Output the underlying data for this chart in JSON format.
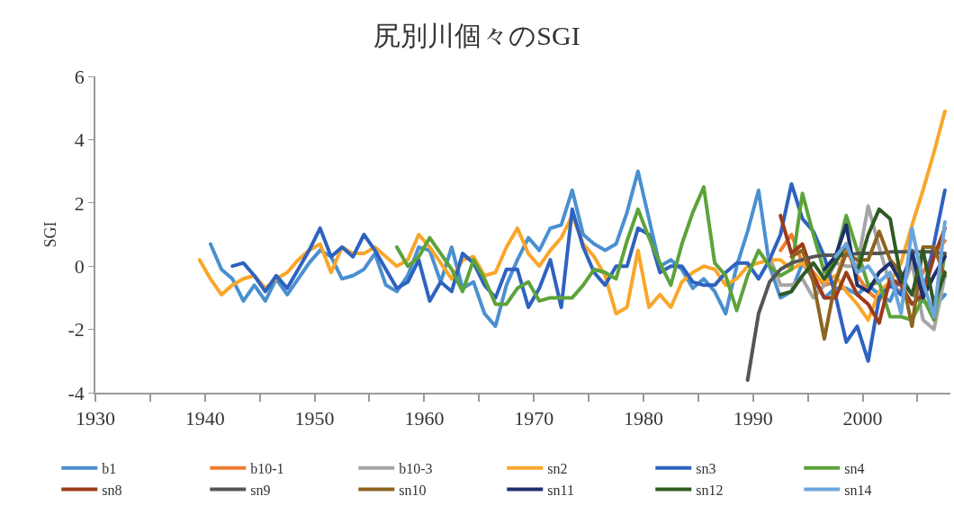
{
  "chart_data": {
    "type": "line",
    "title": "尻別川個々のSGI",
    "ylabel": "SGI",
    "xlim": [
      1930,
      2008
    ],
    "xticks": [
      1930,
      {
        "value": 1935,
        "label": null
      },
      1940,
      {
        "value": 1945,
        "label": null
      },
      1950,
      {
        "value": 1955,
        "label": null
      },
      1960,
      {
        "value": 1965,
        "label": null
      },
      1970,
      {
        "value": 1975,
        "label": null
      },
      1980,
      {
        "value": 1985,
        "label": null
      },
      1990,
      {
        "value": 1995,
        "label": null
      },
      2000,
      {
        "value": 2005,
        "label": null
      }
    ],
    "ylim": [
      -4,
      6
    ],
    "yticks": [
      -4,
      -2,
      0,
      2,
      4,
      6
    ],
    "legend": "bottom",
    "marker": "none",
    "line_style": "solid",
    "series": [
      {
        "name": "b1",
        "color": "#4a90d0",
        "x": [
          1940.5,
          1941.5,
          1942.5,
          1943.5,
          1944.5,
          1945.5,
          1946.5,
          1947.5,
          1948.5,
          1949.5,
          1950.5,
          1951.5,
          1952.5,
          1953.5,
          1954.5,
          1955.5,
          1956.5,
          1957.5,
          1958.5,
          1959.5,
          1960.5,
          1961.5,
          1962.5,
          1963.5,
          1964.5,
          1965.5,
          1966.5,
          1967.5,
          1968.5,
          1969.5,
          1970.5,
          1971.5,
          1972.5,
          1973.5,
          1974.5,
          1975.5,
          1976.5,
          1977.5,
          1978.5,
          1979.5,
          1980.5,
          1981.5,
          1982.5,
          1983.5,
          1984.5,
          1985.5,
          1986.5,
          1987.5,
          1988.5,
          1989.5,
          1990.5,
          1991.5,
          1992.5,
          1993.5,
          1994.5,
          1995.5,
          1996.5,
          1997.5,
          1998.5,
          1999.5,
          2000.5,
          2001.5,
          2002.5,
          2003.5,
          2004.5,
          2005.5,
          2006.5,
          2007.5
        ],
        "values": [
          0.7,
          -0.1,
          -0.4,
          -1.1,
          -0.6,
          -1.1,
          -0.4,
          -0.9,
          -0.4,
          0.1,
          0.5,
          0.3,
          -0.4,
          -0.3,
          -0.1,
          0.4,
          -0.6,
          -0.8,
          -0.3,
          0.6,
          0.5,
          -0.5,
          0.6,
          -0.7,
          -0.5,
          -1.5,
          -1.9,
          -0.6,
          0.2,
          0.9,
          0.5,
          1.2,
          1.3,
          2.4,
          1.0,
          0.7,
          0.5,
          0.7,
          1.7,
          3.0,
          1.5,
          0.0,
          0.2,
          -0.1,
          -0.7,
          -0.4,
          -0.8,
          -1.5,
          0.0,
          1.1,
          2.4,
          0.0,
          -1.0,
          -0.8,
          0.1,
          -0.4,
          -1.0,
          -0.7,
          -0.7,
          -0.9,
          -0.6,
          -0.9,
          -1.1,
          -0.3,
          -0.9,
          -1.1,
          -1.3,
          -0.9
        ]
      },
      {
        "name": "b10-1",
        "color": "#ed7d31",
        "x": [
          1992.5,
          1993.5,
          1994.5,
          1995.5,
          1996.5,
          1997.5,
          1998.5,
          1999.5,
          2000.5,
          2001.5,
          2002.5,
          2003.5,
          2004.5,
          2005.5,
          2006.5,
          2007.5
        ],
        "values": [
          0.5,
          1.0,
          0.1,
          -0.2,
          -0.6,
          -0.5,
          0.6,
          -0.3,
          -0.8,
          -1.1,
          -0.6,
          -0.4,
          -0.9,
          -0.2,
          0.4,
          0.8
        ]
      },
      {
        "name": "b10-3",
        "color": "#a5a5a5",
        "x": [
          1991.5,
          1992.5,
          1993.5,
          1994.5,
          1995.5,
          1996.5,
          1997.5,
          1998.5,
          1999.5,
          2000.5,
          2001.5,
          2002.5,
          2003.5,
          2004.5,
          2005.5,
          2006.5,
          2007.5
        ],
        "values": [
          0.3,
          -0.6,
          -0.6,
          -0.4,
          -1.0,
          -0.6,
          0.1,
          0.0,
          0.0,
          1.9,
          0.6,
          -0.6,
          -0.8,
          0.1,
          -1.7,
          -2.0,
          -0.3
        ]
      },
      {
        "name": "sn2",
        "color": "#f9a62b",
        "x": [
          1939.5,
          1940.5,
          1941.5,
          1942.5,
          1943.5,
          1944.5,
          1945.5,
          1946.5,
          1947.5,
          1948.5,
          1949.5,
          1950.5,
          1951.5,
          1952.5,
          1953.5,
          1954.5,
          1955.5,
          1956.5,
          1957.5,
          1958.5,
          1959.5,
          1960.5,
          1961.5,
          1962.5,
          1963.5,
          1964.5,
          1965.5,
          1966.5,
          1967.5,
          1968.5,
          1969.5,
          1970.5,
          1971.5,
          1972.5,
          1973.5,
          1974.5,
          1975.5,
          1976.5,
          1977.5,
          1978.5,
          1979.5,
          1980.5,
          1981.5,
          1982.5,
          1983.5,
          1984.5,
          1985.5,
          1986.5,
          1987.5,
          1988.5,
          1989.5,
          1990.5,
          1991.5,
          1992.5,
          1993.5,
          1994.5,
          1995.5,
          1996.5,
          1997.5,
          1998.5,
          1999.5,
          2000.5,
          2001.5,
          2002.5,
          2003.5,
          2004.5,
          2005.5,
          2006.5,
          2007.5
        ],
        "values": [
          0.2,
          -0.4,
          -0.9,
          -0.6,
          -0.4,
          -0.3,
          -0.7,
          -0.4,
          -0.2,
          0.2,
          0.5,
          0.7,
          -0.2,
          0.6,
          0.4,
          0.4,
          0.6,
          0.3,
          0.0,
          0.2,
          1.0,
          0.6,
          0.1,
          -0.4,
          0.2,
          0.3,
          -0.3,
          -0.2,
          0.6,
          1.2,
          0.4,
          0.0,
          0.5,
          0.9,
          1.6,
          0.7,
          0.3,
          -0.3,
          -1.5,
          -1.3,
          0.5,
          -1.3,
          -0.9,
          -1.3,
          -0.5,
          -0.2,
          0.0,
          -0.1,
          -0.6,
          -0.4,
          0.0,
          0.1,
          0.2,
          0.2,
          -0.1,
          0.1,
          -0.3,
          -0.5,
          -0.3,
          -0.8,
          -1.2,
          -1.7,
          -0.8,
          -0.5,
          0.1,
          1.3,
          2.4,
          3.6,
          4.9
        ]
      },
      {
        "name": "sn3",
        "color": "#2e62c0",
        "x": [
          1942.5,
          1943.5,
          1944.5,
          1945.5,
          1946.5,
          1947.5,
          1948.5,
          1949.5,
          1950.5,
          1951.5,
          1952.5,
          1953.5,
          1954.5,
          1955.5,
          1956.5,
          1957.5,
          1958.5,
          1959.5,
          1960.5,
          1961.5,
          1962.5,
          1963.5,
          1964.5,
          1965.5,
          1966.5,
          1967.5,
          1968.5,
          1969.5,
          1970.5,
          1971.5,
          1972.5,
          1973.5,
          1974.5,
          1975.5,
          1976.5,
          1977.5,
          1978.5,
          1979.5,
          1980.5,
          1981.5,
          1982.5,
          1983.5,
          1984.5,
          1985.5,
          1986.5,
          1987.5,
          1988.5,
          1989.5,
          1990.5,
          1991.5,
          1992.5,
          1993.5,
          1994.5,
          1995.5,
          1996.5,
          1997.5,
          1998.5,
          1999.5,
          2000.5,
          2001.5,
          2002.5,
          2003.5,
          2004.5,
          2005.5,
          2006.5,
          2007.5
        ],
        "values": [
          0.0,
          0.1,
          -0.3,
          -0.8,
          -0.3,
          -0.7,
          -0.1,
          0.5,
          1.2,
          0.3,
          0.6,
          0.3,
          1.0,
          0.5,
          -0.1,
          -0.7,
          -0.5,
          0.2,
          -1.1,
          -0.5,
          -0.8,
          0.4,
          0.1,
          -0.6,
          -1.0,
          -0.1,
          -0.1,
          -1.3,
          -0.7,
          0.2,
          -1.3,
          1.8,
          0.6,
          -0.2,
          -0.6,
          0.0,
          0.0,
          1.2,
          1.0,
          -0.2,
          0.0,
          0.0,
          -0.5,
          -0.6,
          -0.6,
          -0.2,
          0.1,
          0.1,
          -0.4,
          0.2,
          1.0,
          2.6,
          1.5,
          1.1,
          0.3,
          -0.9,
          -2.4,
          -1.9,
          -3.0,
          -1.0,
          -0.6,
          -0.9,
          0.5,
          -0.9,
          0.7,
          2.4
        ]
      },
      {
        "name": "sn4",
        "color": "#5ca33a",
        "x": [
          1957.5,
          1958.5,
          1959.5,
          1960.5,
          1961.5,
          1962.5,
          1963.5,
          1964.5,
          1965.5,
          1966.5,
          1967.5,
          1968.5,
          1969.5,
          1970.5,
          1971.5,
          1972.5,
          1973.5,
          1974.5,
          1975.5,
          1976.5,
          1977.5,
          1978.5,
          1979.5,
          1980.5,
          1981.5,
          1982.5,
          1983.5,
          1984.5,
          1985.5,
          1986.5,
          1987.5,
          1988.5,
          1989.5,
          1990.5,
          1991.5,
          1992.5,
          1993.5,
          1994.5,
          1995.5,
          1996.5,
          1997.5,
          1998.5,
          1999.5,
          2000.5,
          2001.5,
          2002.5,
          2003.5,
          2004.5,
          2005.5,
          2006.5,
          2007.5
        ],
        "values": [
          0.6,
          0.0,
          0.3,
          0.9,
          0.4,
          -0.1,
          -0.8,
          0.2,
          -0.4,
          -1.2,
          -1.2,
          -0.7,
          -0.5,
          -1.1,
          -1.0,
          -1.0,
          -1.0,
          -0.6,
          -0.1,
          -0.2,
          -0.4,
          0.8,
          1.8,
          0.9,
          0.1,
          -0.6,
          0.7,
          1.7,
          2.5,
          0.1,
          -0.3,
          -1.4,
          -0.3,
          0.5,
          0.0,
          -0.3,
          -0.1,
          2.3,
          1.0,
          -0.2,
          0.2,
          1.6,
          0.5,
          -0.6,
          -0.5,
          -1.6,
          -1.6,
          -1.7,
          -1.0,
          -1.7,
          0.4
        ]
      },
      {
        "name": "sn8",
        "color": "#9e3a1a",
        "x": [
          1992.5,
          1993.5,
          1994.5,
          1995.5,
          1996.5,
          1997.5,
          1998.5,
          1999.5,
          2000.5,
          2001.5,
          2002.5,
          2003.5,
          2004.5,
          2005.5,
          2006.5,
          2007.5
        ],
        "values": [
          1.6,
          0.4,
          0.7,
          -0.3,
          -1.0,
          -1.0,
          -0.2,
          -0.9,
          -1.2,
          -1.8,
          -0.4,
          -0.6,
          -1.2,
          -0.9,
          0.3,
          1.2
        ]
      },
      {
        "name": "sn9",
        "color": "#555555",
        "x": [
          1989.5,
          1990.5,
          1991.5,
          1992.5,
          1993.5,
          1994.5,
          1995.5,
          1996.5,
          1997.5,
          1998.5,
          1999.5,
          2000.5,
          2001.5,
          2002.5,
          2003.5,
          2004.5,
          2005.5,
          2006.5,
          2007.5
        ],
        "values": [
          -3.6,
          -1.5,
          -0.5,
          -0.1,
          0.1,
          0.2,
          0.3,
          0.35,
          0.35,
          0.35,
          0.4,
          0.4,
          0.4,
          0.45,
          0.45,
          0.45,
          0.45,
          0.45,
          0.4
        ]
      },
      {
        "name": "sn10",
        "color": "#8c6420",
        "x": [
          1993.5,
          1994.5,
          1995.5,
          1996.5,
          1997.5,
          1998.5,
          1999.5,
          2000.5,
          2001.5,
          2002.5,
          2003.5,
          2004.5,
          2005.5,
          2006.5,
          2007.5
        ],
        "values": [
          0.3,
          0.5,
          -0.5,
          -2.3,
          -0.5,
          0.4,
          0.2,
          0.2,
          1.1,
          0.2,
          -0.2,
          -1.9,
          0.6,
          0.6,
          -0.3
        ]
      },
      {
        "name": "sn11",
        "color": "#1f2f6b",
        "x": [
          1996.5,
          1997.5,
          1998.5,
          1999.5,
          2000.5,
          2001.5,
          2002.5,
          2003.5,
          2004.5,
          2005.5,
          2006.5,
          2007.5
        ],
        "values": [
          -0.1,
          0.3,
          1.3,
          -0.6,
          -0.8,
          -0.2,
          0.1,
          -0.5,
          0.4,
          -1.0,
          -0.3,
          0.3
        ]
      },
      {
        "name": "sn12",
        "color": "#2f5a22",
        "x": [
          1992.5,
          1993.5,
          1994.5,
          1995.5,
          1996.5,
          1997.5,
          1998.5,
          1999.5,
          2000.5,
          2001.5,
          2002.5,
          2003.5,
          2004.5,
          2005.5,
          2006.5,
          2007.5
        ],
        "values": [
          -0.9,
          -0.8,
          -0.3,
          0.1,
          -0.4,
          0.1,
          0.7,
          -0.2,
          1.0,
          1.8,
          1.5,
          -0.4,
          -0.9,
          0.5,
          -1.2,
          -0.2
        ]
      },
      {
        "name": "sn14",
        "color": "#6aa6dc",
        "x": [
          1997.5,
          1998.5,
          1999.5,
          2000.5,
          2001.5,
          2002.5,
          2003.5,
          2004.5,
          2005.5,
          2006.5,
          2007.5
        ],
        "values": [
          0.3,
          0.7,
          -0.2,
          0.0,
          -0.5,
          -0.2,
          -1.5,
          1.2,
          -0.5,
          -1.6,
          1.4
        ]
      }
    ]
  }
}
